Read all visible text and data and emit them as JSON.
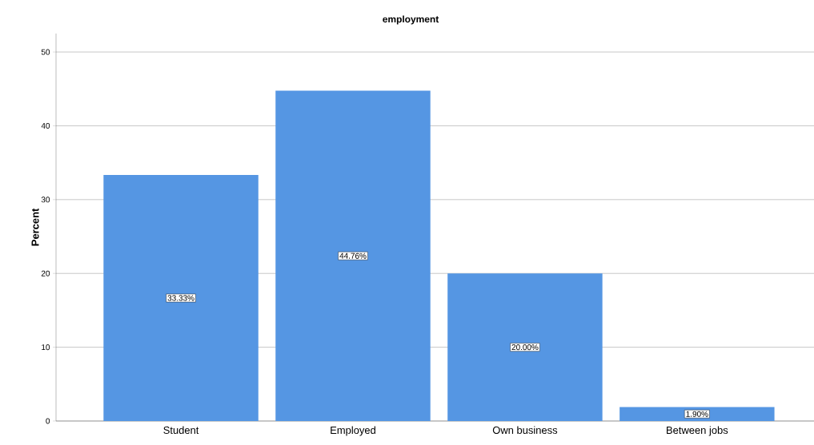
{
  "chart_data": {
    "type": "bar",
    "title": "employment",
    "ylabel": "Percent",
    "categories": [
      "Student",
      "Employed",
      "Own business",
      "Between jobs"
    ],
    "values": [
      33.33,
      44.76,
      20.0,
      1.9
    ],
    "value_labels": [
      "33.33%",
      "44.76%",
      "20.00%",
      "1.90%"
    ],
    "color": "#5596e3",
    "ylim": [
      0,
      52.5
    ],
    "yticks": [
      0,
      10,
      20,
      30,
      40,
      50
    ],
    "grid": "y"
  }
}
